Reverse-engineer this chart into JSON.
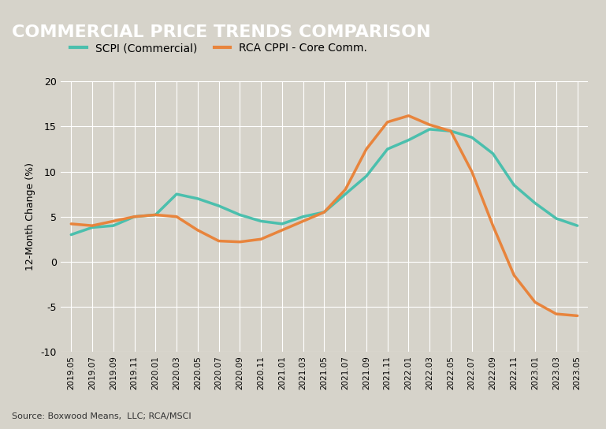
{
  "title": "COMMERCIAL PRICE TRENDS COMPARISON",
  "ylabel": "12-Month Change (%)",
  "source": "Source: Boxwood Means,  LLC; RCA/MSCI",
  "background_color": "#d6d3ca",
  "plot_bg_color": "#d6d3ca",
  "title_bg_color": "#4a4a4a",
  "title_color": "#ffffff",
  "ylim": [
    -10,
    20
  ],
  "yticks": [
    -10,
    -5,
    0,
    5,
    10,
    15,
    20
  ],
  "legend_labels": [
    "SCPI (Commercial)",
    "RCA CPPI - Core Comm."
  ],
  "legend_colors": [
    "#4bbfad",
    "#e8843c"
  ],
  "line_width": 2.5,
  "x_labels": [
    "2019.05",
    "2019.07",
    "2019.09",
    "2019.11",
    "2020.01",
    "2020.03",
    "2020.05",
    "2020.07",
    "2020.09",
    "2020.11",
    "2021.01",
    "2021.03",
    "2021.05",
    "2021.07",
    "2021.09",
    "2021.11",
    "2022.01",
    "2022.03",
    "2022.05",
    "2022.07",
    "2022.09",
    "2022.11",
    "2023.01",
    "2023.03",
    "2023.05"
  ],
  "scpi": [
    3.0,
    3.8,
    4.0,
    5.0,
    5.2,
    7.5,
    7.0,
    6.2,
    5.2,
    4.5,
    4.2,
    5.0,
    5.5,
    7.5,
    9.5,
    12.5,
    13.5,
    14.7,
    14.5,
    13.8,
    12.0,
    8.5,
    6.5,
    4.8,
    4.0
  ],
  "rca": [
    4.2,
    4.0,
    4.5,
    5.0,
    5.2,
    5.0,
    3.5,
    2.3,
    2.2,
    2.5,
    3.5,
    4.5,
    5.5,
    8.0,
    12.5,
    15.5,
    16.2,
    15.2,
    14.5,
    10.0,
    4.0,
    -1.5,
    -4.5,
    -5.8,
    -6.0
  ]
}
